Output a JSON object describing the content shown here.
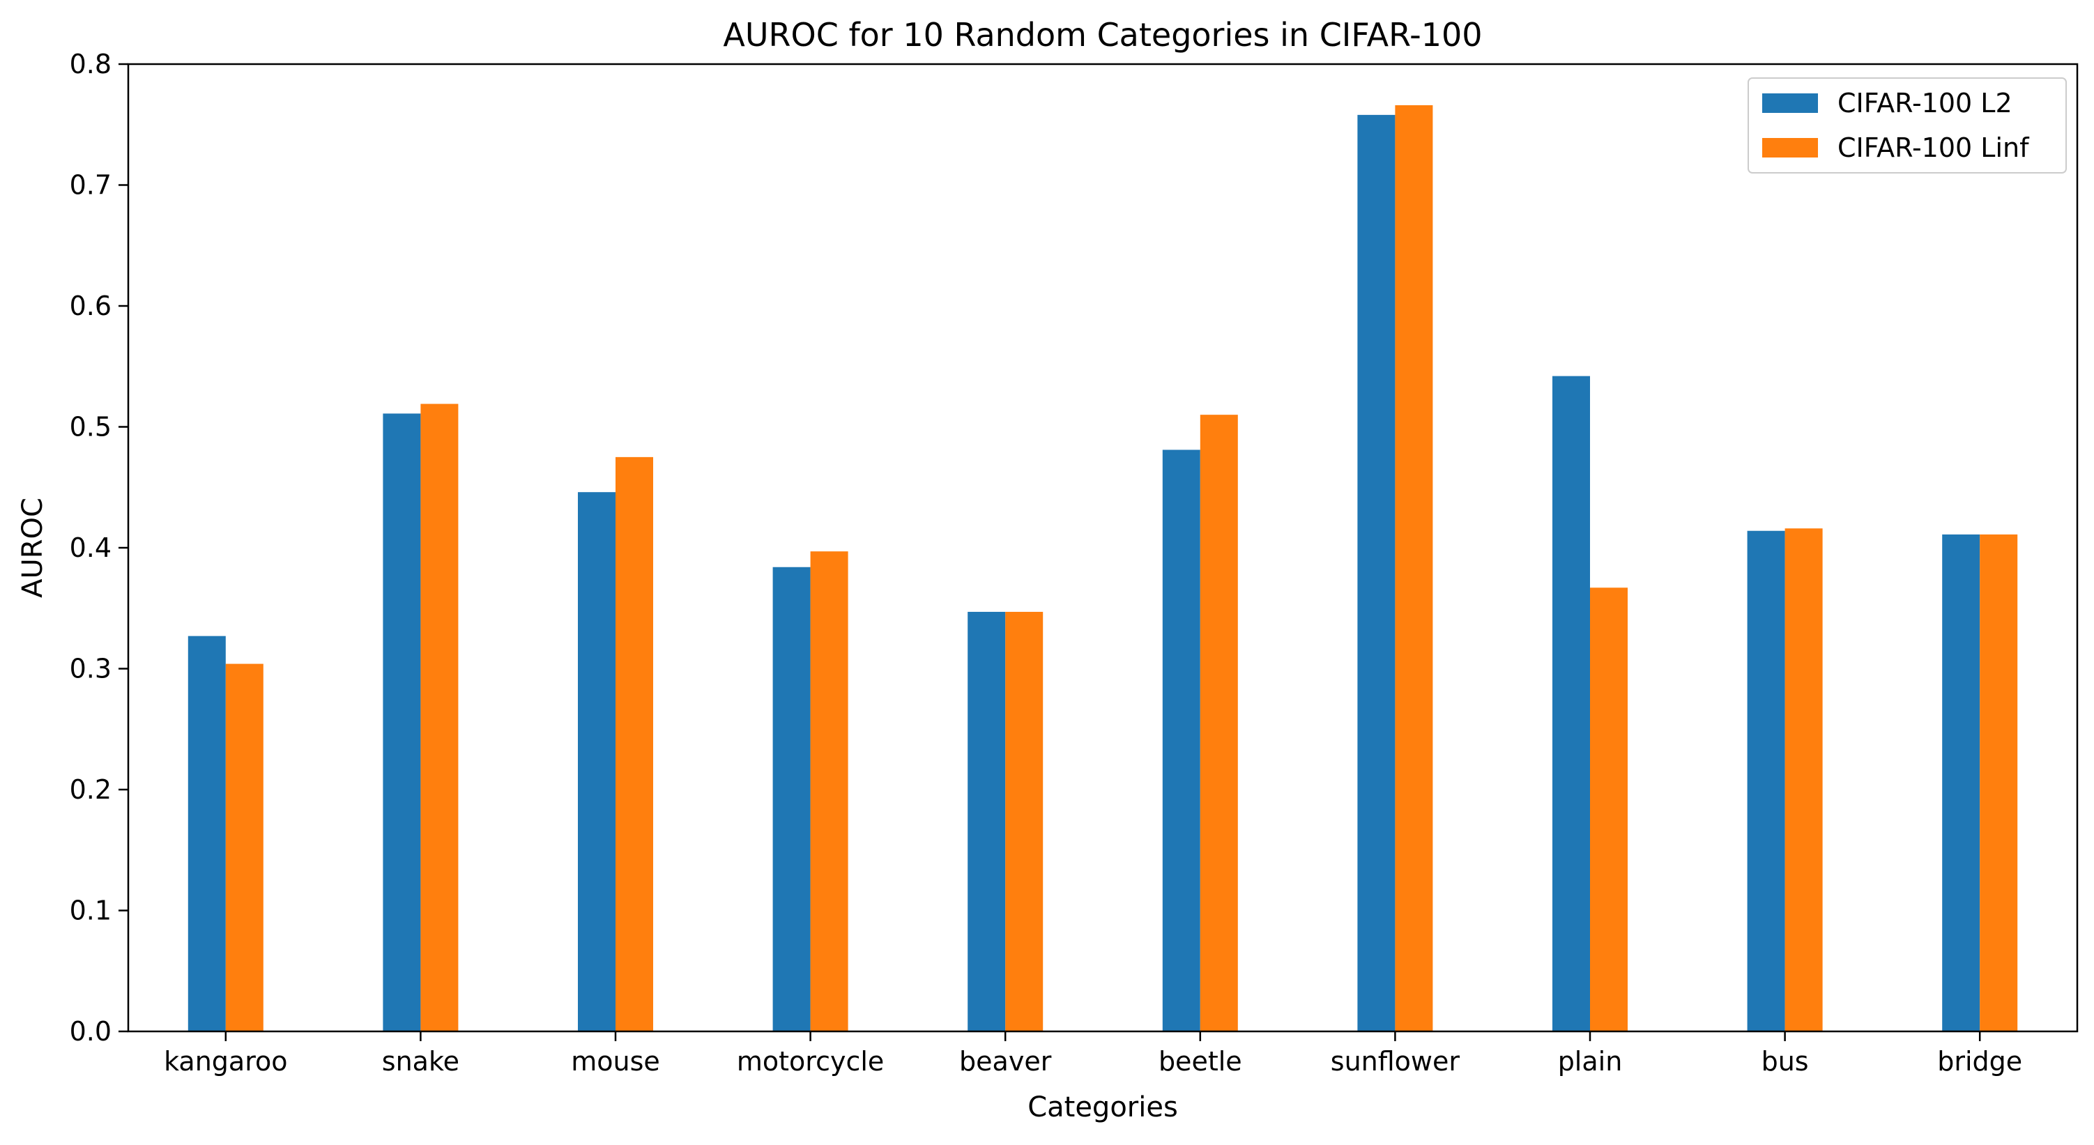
{
  "chart_data": {
    "type": "bar",
    "title": "AUROC for 10 Random Categories in CIFAR-100",
    "xlabel": "Categories",
    "ylabel": "AUROC",
    "ylim": [
      0,
      0.8
    ],
    "yticks": [
      "0.0",
      "0.1",
      "0.2",
      "0.3",
      "0.4",
      "0.5",
      "0.6",
      "0.7",
      "0.8"
    ],
    "categories": [
      "kangaroo",
      "snake",
      "mouse",
      "motorcycle",
      "beaver",
      "beetle",
      "sunflower",
      "plain",
      "bus",
      "bridge"
    ],
    "series": [
      {
        "name": "CIFAR-100 L2",
        "color": "#1f77b4",
        "values": [
          0.327,
          0.511,
          0.446,
          0.384,
          0.347,
          0.481,
          0.758,
          0.542,
          0.414,
          0.411
        ]
      },
      {
        "name": "CIFAR-100 Linf",
        "color": "#ff7f0e",
        "values": [
          0.304,
          0.519,
          0.475,
          0.397,
          0.347,
          0.51,
          0.766,
          0.367,
          0.416,
          0.411
        ]
      }
    ],
    "grid": false,
    "legend_position": "top-right"
  }
}
